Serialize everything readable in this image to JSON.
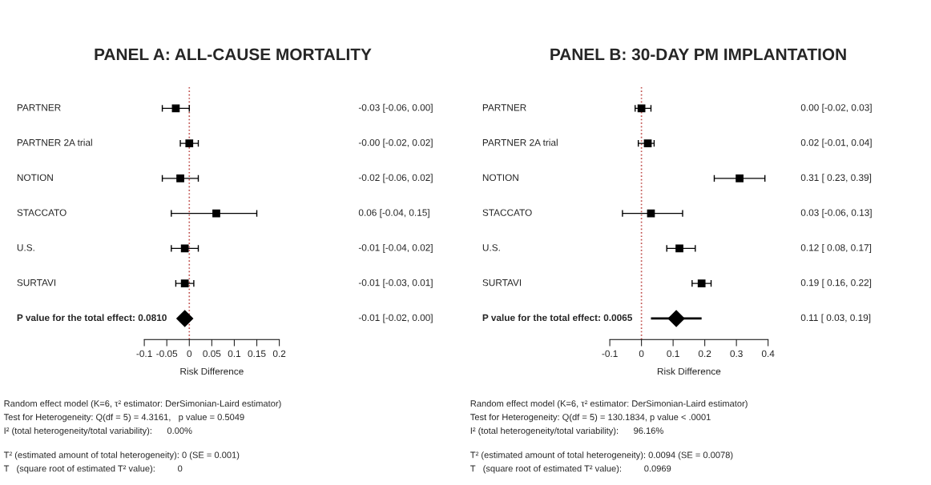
{
  "chart_data": [
    {
      "type": "scatter",
      "orientation": "horizontal",
      "title": "PANEL A: ALL-CAUSE MORTALITY",
      "xlabel": "Risk Difference",
      "categories": [
        "PARTNER",
        "PARTNER 2A trial",
        "NOTION",
        "STACCATO",
        "U.S.",
        "SURTAVI",
        "P value for the total effect: 0.0810"
      ],
      "values": [
        -0.03,
        0,
        -0.02,
        0.06,
        -0.01,
        -0.01,
        -0.01
      ],
      "errors": [
        [
          -0.06,
          0.0
        ],
        [
          -0.02,
          0.02
        ],
        [
          -0.06,
          0.02
        ],
        [
          -0.04,
          0.15
        ],
        [
          -0.04,
          0.02
        ],
        [
          -0.03,
          0.01
        ],
        [
          -0.02,
          0.0
        ]
      ],
      "value_labels": [
        "-0.03 [-0.06, 0.00]",
        "-0.00 [-0.02, 0.02]",
        "-0.02 [-0.06, 0.02]",
        "0.06 [-0.04, 0.15]",
        "-0.01 [-0.04, 0.02]",
        "-0.01 [-0.03, 0.01]",
        "-0.01 [-0.02, 0.00]"
      ],
      "color": "#000000",
      "marker": "square",
      "xlim": [
        -0.1,
        0.2
      ],
      "xticks": [
        -0.1,
        -0.05,
        0,
        0.05,
        0.1,
        0.15,
        0.2
      ],
      "tick_labels": "x",
      "grid": false,
      "legend": false,
      "ref_lines": [
        {
          "axis": "x",
          "value": 0,
          "color": "#c0504d",
          "line_style": "dotted"
        }
      ],
      "annotations": [
        "Random effect model (K=6, τ² estimator: DerSimonian-Laird estimator)",
        "Test for Heterogeneity: Q(df = 5) = 4.3161,   p value = 0.5049",
        "I² (total heterogeneity/total variability):      0.00%",
        "T² (estimated amount of total heterogeneity): 0 (SE = 0.001)",
        "T   (square root of estimated T² value):         0"
      ]
    },
    {
      "type": "scatter",
      "orientation": "horizontal",
      "title": "PANEL B: 30-DAY PM IMPLANTATION",
      "xlabel": "Risk Difference",
      "categories": [
        "PARTNER",
        "PARTNER 2A trial",
        "NOTION",
        "STACCATO",
        "U.S.",
        "SURTAVI",
        "P value for the total effect: 0.0065"
      ],
      "values": [
        0.0,
        0.02,
        0.31,
        0.03,
        0.12,
        0.19,
        0.11
      ],
      "errors": [
        [
          -0.02,
          0.03
        ],
        [
          -0.01,
          0.04
        ],
        [
          0.23,
          0.39
        ],
        [
          -0.06,
          0.13
        ],
        [
          0.08,
          0.17
        ],
        [
          0.16,
          0.22
        ],
        [
          0.03,
          0.19
        ]
      ],
      "value_labels": [
        "0.00 [-0.02, 0.03]",
        "0.02 [-0.01, 0.04]",
        "0.31 [ 0.23, 0.39]",
        "0.03 [-0.06, 0.13]",
        "0.12 [ 0.08, 0.17]",
        "0.19 [ 0.16, 0.22]",
        "0.11 [ 0.03, 0.19]"
      ],
      "color": "#000000",
      "marker": "square",
      "xlim": [
        -0.1,
        0.4
      ],
      "xticks": [
        -0.1,
        0,
        0.1,
        0.2,
        0.3,
        0.4
      ],
      "tick_labels": "x",
      "grid": false,
      "legend": false,
      "ref_lines": [
        {
          "axis": "x",
          "value": 0,
          "color": "#c0504d",
          "line_style": "dotted"
        }
      ],
      "annotations": [
        "Random effect model (K=6, τ² estimator: DerSimonian-Laird estimator)",
        "Test for Heterogeneity: Q(df = 5) = 130.1834, p value < .0001",
        "I² (total heterogeneity/total variability):      96.16%",
        "T² (estimated amount of total heterogeneity): 0.0094 (SE = 0.0078)",
        "T   (square root of estimated T² value):         0.0969"
      ]
    }
  ]
}
